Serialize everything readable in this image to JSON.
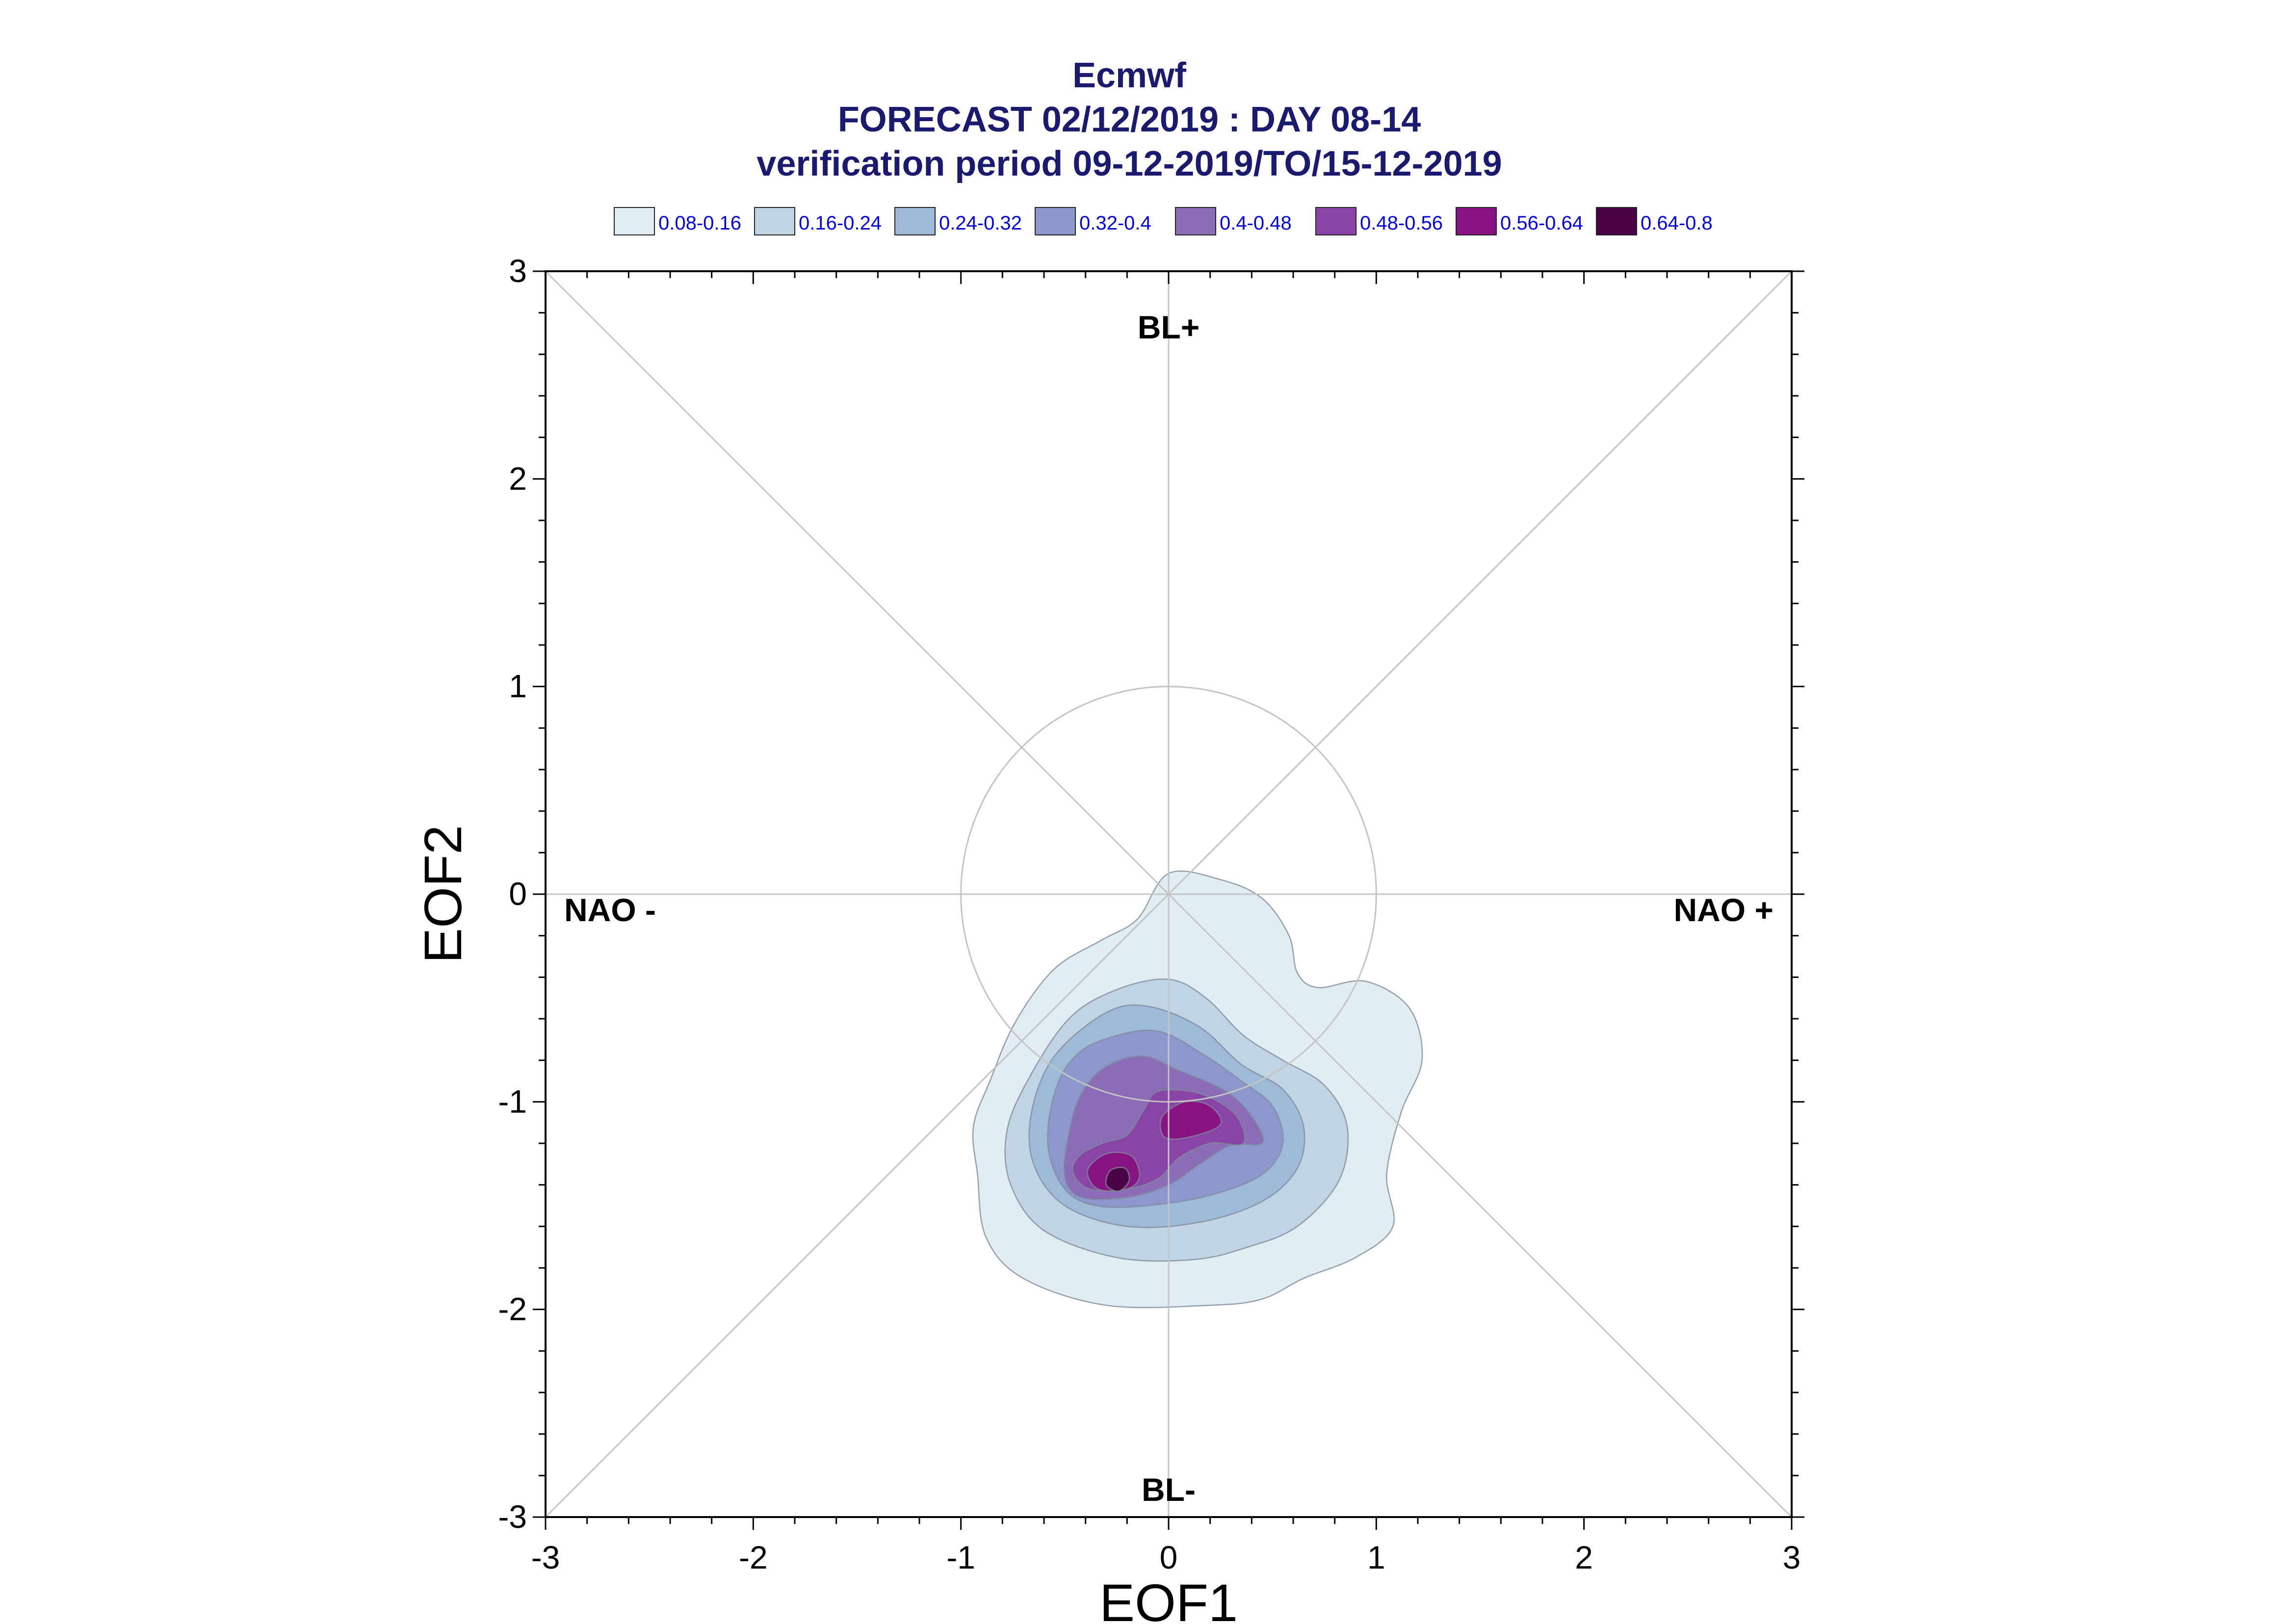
{
  "title": {
    "line1": "Ecmwf",
    "line2": "FORECAST 02/12/2019 : DAY 08-14",
    "line3": "verification period 09-12-2019/TO/15-12-2019",
    "color": "#1a1a6e"
  },
  "legend": {
    "text_color": "#0000dd",
    "items": [
      {
        "label": "0.08-0.16",
        "color": "#e1ecf3"
      },
      {
        "label": "0.16-0.24",
        "color": "#c0d4e4"
      },
      {
        "label": "0.24-0.32",
        "color": "#9ebad8"
      },
      {
        "label": "0.32-0.4",
        "color": "#8c98cc"
      },
      {
        "label": "0.4-0.48",
        "color": "#8a6db6"
      },
      {
        "label": "0.48-0.56",
        "color": "#8a44a6"
      },
      {
        "label": "0.56-0.64",
        "color": "#881484"
      },
      {
        "label": "0.64-0.8",
        "color": "#4a0344"
      }
    ]
  },
  "regime_labels": {
    "top": "BL+",
    "bottom": "BL-",
    "left": "NAO -",
    "right": "NAO +"
  },
  "chart_data": {
    "type": "contour",
    "xlabel": "EOF1",
    "ylabel": "EOF2",
    "xlim": [
      -3,
      3
    ],
    "ylim": [
      -3,
      3
    ],
    "xticks": [
      "-3",
      "-2",
      "-1",
      "0",
      "1",
      "2",
      "3"
    ],
    "yticks": [
      "3",
      "2",
      "1",
      "0",
      "-1",
      "-2",
      "-3"
    ],
    "reference_circle_radius": 1,
    "diagonals": true,
    "density_levels": [
      {
        "range": "0.08-0.16",
        "polygon": [
          [
            0.0,
            0.1
          ],
          [
            0.25,
            0.07
          ],
          [
            0.45,
            -0.02
          ],
          [
            0.58,
            -0.2
          ],
          [
            0.62,
            -0.38
          ],
          [
            0.72,
            -0.45
          ],
          [
            0.95,
            -0.42
          ],
          [
            1.16,
            -0.55
          ],
          [
            1.22,
            -0.8
          ],
          [
            1.12,
            -1.05
          ],
          [
            1.05,
            -1.35
          ],
          [
            1.08,
            -1.6
          ],
          [
            0.9,
            -1.75
          ],
          [
            0.65,
            -1.85
          ],
          [
            0.45,
            -1.95
          ],
          [
            0.2,
            -1.98
          ],
          [
            -0.3,
            -1.98
          ],
          [
            -0.7,
            -1.85
          ],
          [
            -0.88,
            -1.65
          ],
          [
            -0.92,
            -1.35
          ],
          [
            -0.94,
            -1.12
          ],
          [
            -0.86,
            -0.9
          ],
          [
            -0.74,
            -0.62
          ],
          [
            -0.55,
            -0.36
          ],
          [
            -0.32,
            -0.22
          ],
          [
            -0.15,
            -0.12
          ]
        ]
      },
      {
        "range": "0.16-0.24",
        "polygon": [
          [
            -0.25,
            -0.46
          ],
          [
            0.0,
            -0.41
          ],
          [
            0.18,
            -0.5
          ],
          [
            0.36,
            -0.68
          ],
          [
            0.55,
            -0.8
          ],
          [
            0.75,
            -0.92
          ],
          [
            0.86,
            -1.12
          ],
          [
            0.82,
            -1.38
          ],
          [
            0.62,
            -1.6
          ],
          [
            0.38,
            -1.7
          ],
          [
            0.12,
            -1.76
          ],
          [
            -0.25,
            -1.75
          ],
          [
            -0.6,
            -1.62
          ],
          [
            -0.76,
            -1.4
          ],
          [
            -0.78,
            -1.15
          ],
          [
            -0.68,
            -0.9
          ],
          [
            -0.48,
            -0.6
          ]
        ]
      },
      {
        "range": "0.24-0.32",
        "polygon": [
          [
            -0.3,
            -0.57
          ],
          [
            -0.1,
            -0.54
          ],
          [
            0.15,
            -0.64
          ],
          [
            0.35,
            -0.82
          ],
          [
            0.55,
            -0.94
          ],
          [
            0.65,
            -1.12
          ],
          [
            0.62,
            -1.32
          ],
          [
            0.45,
            -1.48
          ],
          [
            0.15,
            -1.58
          ],
          [
            -0.2,
            -1.6
          ],
          [
            -0.5,
            -1.5
          ],
          [
            -0.65,
            -1.3
          ],
          [
            -0.66,
            -1.05
          ],
          [
            -0.55,
            -0.78
          ]
        ]
      },
      {
        "range": "0.32-0.4",
        "polygon": [
          [
            -0.28,
            -0.69
          ],
          [
            -0.05,
            -0.66
          ],
          [
            0.18,
            -0.78
          ],
          [
            0.35,
            -0.9
          ],
          [
            0.5,
            -1.02
          ],
          [
            0.55,
            -1.2
          ],
          [
            0.45,
            -1.35
          ],
          [
            0.2,
            -1.45
          ],
          [
            -0.1,
            -1.5
          ],
          [
            -0.35,
            -1.5
          ],
          [
            -0.5,
            -1.42
          ],
          [
            -0.58,
            -1.22
          ],
          [
            -0.55,
            -0.96
          ],
          [
            -0.45,
            -0.78
          ]
        ]
      },
      {
        "range": "0.4-0.48",
        "polygon": [
          [
            -0.3,
            -0.83
          ],
          [
            -0.12,
            -0.78
          ],
          [
            0.05,
            -0.85
          ],
          [
            0.2,
            -0.91
          ],
          [
            0.32,
            -0.98
          ],
          [
            0.42,
            -1.1
          ],
          [
            0.45,
            -1.2
          ],
          [
            0.3,
            -1.21
          ],
          [
            0.15,
            -1.3
          ],
          [
            0.0,
            -1.4
          ],
          [
            -0.2,
            -1.46
          ],
          [
            -0.42,
            -1.46
          ],
          [
            -0.5,
            -1.36
          ],
          [
            -0.48,
            -1.15
          ],
          [
            -0.42,
            -0.96
          ]
        ]
      },
      {
        "range": "0.48-0.56",
        "polygon": [
          [
            -0.05,
            -0.95
          ],
          [
            0.15,
            -0.96
          ],
          [
            0.32,
            -1.06
          ],
          [
            0.36,
            -1.2
          ],
          [
            0.2,
            -1.2
          ],
          [
            0.05,
            -1.27
          ],
          [
            -0.05,
            -1.37
          ],
          [
            -0.2,
            -1.42
          ],
          [
            -0.38,
            -1.42
          ],
          [
            -0.46,
            -1.34
          ],
          [
            -0.43,
            -1.26
          ],
          [
            -0.32,
            -1.2
          ],
          [
            -0.2,
            -1.16
          ],
          [
            -0.12,
            -1.04
          ]
        ]
      },
      {
        "range": "0.56-0.64",
        "polygon": [
          [
            -0.03,
            -1.07
          ],
          [
            0.08,
            -1.0
          ],
          [
            0.2,
            -1.02
          ],
          [
            0.25,
            -1.11
          ],
          [
            0.1,
            -1.17
          ],
          [
            -0.02,
            -1.17
          ]
        ]
      },
      {
        "range": "0.56-0.64",
        "polygon": [
          [
            -0.3,
            -1.25
          ],
          [
            -0.18,
            -1.26
          ],
          [
            -0.14,
            -1.36
          ],
          [
            -0.2,
            -1.42
          ],
          [
            -0.34,
            -1.42
          ],
          [
            -0.39,
            -1.33
          ]
        ]
      },
      {
        "range": "0.64-0.8",
        "polygon": [
          [
            -0.28,
            -1.33
          ],
          [
            -0.21,
            -1.32
          ],
          [
            -0.19,
            -1.38
          ],
          [
            -0.24,
            -1.43
          ],
          [
            -0.3,
            -1.4
          ]
        ]
      }
    ]
  }
}
